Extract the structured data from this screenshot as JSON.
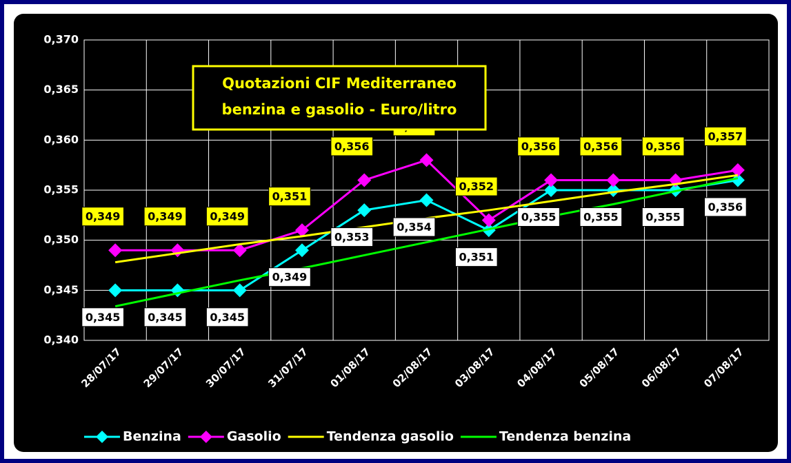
{
  "chart_data": {
    "type": "line",
    "title": [
      "Quotazioni CIF Mediterraneo",
      "benzina e gasolio - Euro/litro"
    ],
    "categories": [
      "28/07/17",
      "29/07/17",
      "30/07/17",
      "31/07/17",
      "01/08/17",
      "02/08/17",
      "03/08/17",
      "04/08/17",
      "05/08/17",
      "06/08/17",
      "07/08/17"
    ],
    "series": [
      {
        "name": "Benzina",
        "color": "#00ffff",
        "marker": "diamond",
        "values": [
          0.345,
          0.345,
          0.345,
          0.349,
          0.353,
          0.354,
          0.351,
          0.355,
          0.355,
          0.355,
          0.356
        ],
        "value_labels": [
          "0,345",
          "0,345",
          "0,345",
          "0,349",
          "0,353",
          "0,354",
          "0,351",
          "0,355",
          "0,355",
          "0,355",
          "0,356"
        ]
      },
      {
        "name": "Gasolio",
        "color": "#ff00ff",
        "marker": "diamond",
        "values": [
          0.349,
          0.349,
          0.349,
          0.351,
          0.356,
          0.358,
          0.352,
          0.356,
          0.356,
          0.356,
          0.357
        ],
        "value_labels": [
          "0,349",
          "0,349",
          "0,349",
          "0,351",
          "0,356",
          "0,358",
          "0,352",
          "0,356",
          "0,356",
          "0,356",
          "0,357"
        ]
      },
      {
        "name": "Tendenza gasolio",
        "color": "#ffff00",
        "values": [
          0.3478,
          0.3487,
          0.3496,
          0.3504,
          0.3513,
          0.3522,
          0.353,
          0.3539,
          0.3548,
          0.3556,
          0.3565
        ]
      },
      {
        "name": "Tendenza benzina",
        "color": "#00ff00",
        "values": [
          0.3434,
          0.3447,
          0.346,
          0.3472,
          0.3485,
          0.3498,
          0.3511,
          0.3524,
          0.3536,
          0.3549,
          0.3562
        ]
      }
    ],
    "ylim": [
      0.34,
      0.37
    ],
    "yticks": [
      {
        "value": 0.34,
        "label": "0,340"
      },
      {
        "value": 0.345,
        "label": "0,345"
      },
      {
        "value": 0.35,
        "label": "0,350"
      },
      {
        "value": 0.355,
        "label": "0,355"
      },
      {
        "value": 0.36,
        "label": "0,360"
      },
      {
        "value": 0.365,
        "label": "0,365"
      },
      {
        "value": 0.37,
        "label": "0,370"
      }
    ],
    "grid": true,
    "legend": "bottom"
  }
}
